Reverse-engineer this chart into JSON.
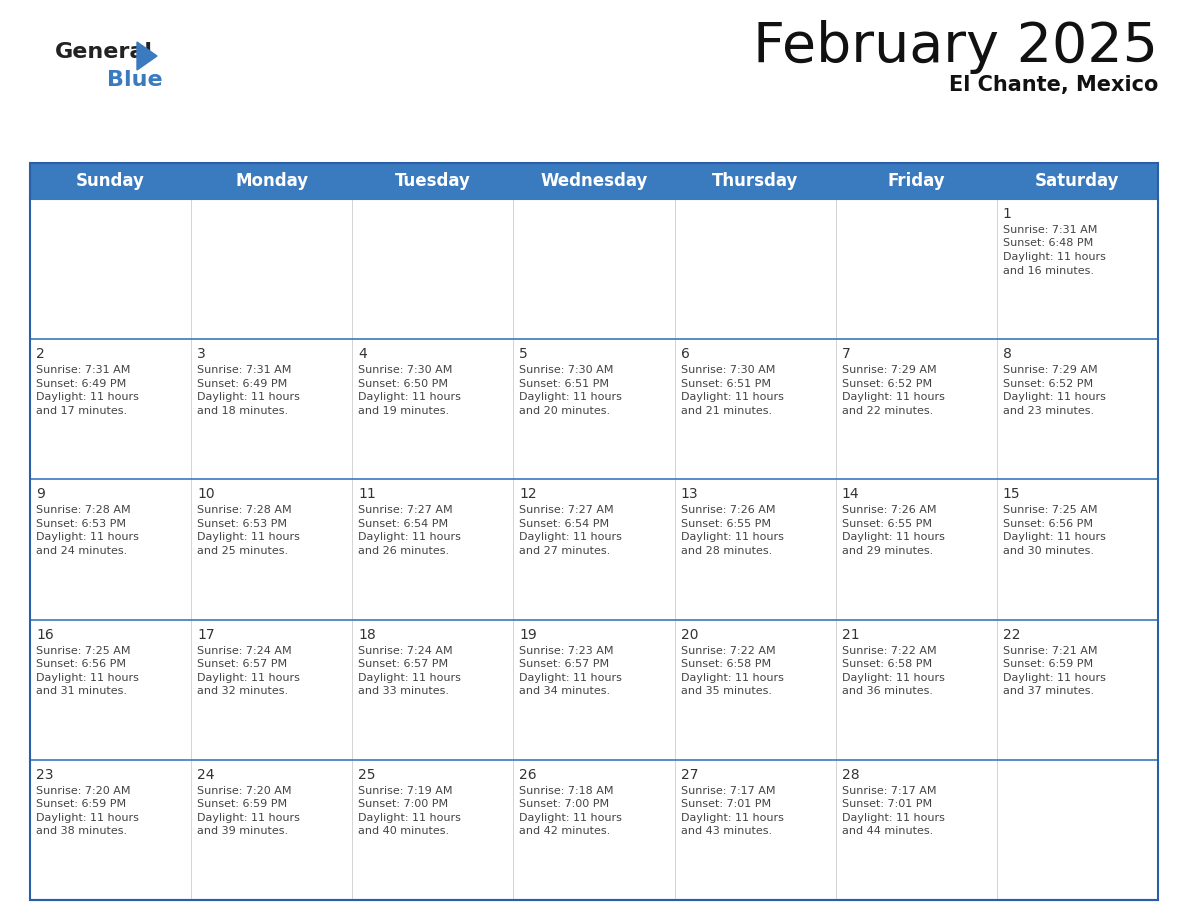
{
  "title": "February 2025",
  "subtitle": "El Chante, Mexico",
  "header_color": "#3a7abf",
  "header_text_color": "#ffffff",
  "cell_bg_color": "#ffffff",
  "cell_alt_bg": "#f0f0f0",
  "border_color": "#2a5fa8",
  "row_line_color": "#3a7abf",
  "day_names": [
    "Sunday",
    "Monday",
    "Tuesday",
    "Wednesday",
    "Thursday",
    "Friday",
    "Saturday"
  ],
  "title_fontsize": 40,
  "subtitle_fontsize": 15,
  "day_header_fontsize": 12,
  "day_num_fontsize": 10,
  "cell_text_fontsize": 8,
  "calendar": [
    [
      {
        "day": null,
        "lines": []
      },
      {
        "day": null,
        "lines": []
      },
      {
        "day": null,
        "lines": []
      },
      {
        "day": null,
        "lines": []
      },
      {
        "day": null,
        "lines": []
      },
      {
        "day": null,
        "lines": []
      },
      {
        "day": 1,
        "lines": [
          "Sunrise: 7:31 AM",
          "Sunset: 6:48 PM",
          "Daylight: 11 hours",
          "and 16 minutes."
        ]
      }
    ],
    [
      {
        "day": 2,
        "lines": [
          "Sunrise: 7:31 AM",
          "Sunset: 6:49 PM",
          "Daylight: 11 hours",
          "and 17 minutes."
        ]
      },
      {
        "day": 3,
        "lines": [
          "Sunrise: 7:31 AM",
          "Sunset: 6:49 PM",
          "Daylight: 11 hours",
          "and 18 minutes."
        ]
      },
      {
        "day": 4,
        "lines": [
          "Sunrise: 7:30 AM",
          "Sunset: 6:50 PM",
          "Daylight: 11 hours",
          "and 19 minutes."
        ]
      },
      {
        "day": 5,
        "lines": [
          "Sunrise: 7:30 AM",
          "Sunset: 6:51 PM",
          "Daylight: 11 hours",
          "and 20 minutes."
        ]
      },
      {
        "day": 6,
        "lines": [
          "Sunrise: 7:30 AM",
          "Sunset: 6:51 PM",
          "Daylight: 11 hours",
          "and 21 minutes."
        ]
      },
      {
        "day": 7,
        "lines": [
          "Sunrise: 7:29 AM",
          "Sunset: 6:52 PM",
          "Daylight: 11 hours",
          "and 22 minutes."
        ]
      },
      {
        "day": 8,
        "lines": [
          "Sunrise: 7:29 AM",
          "Sunset: 6:52 PM",
          "Daylight: 11 hours",
          "and 23 minutes."
        ]
      }
    ],
    [
      {
        "day": 9,
        "lines": [
          "Sunrise: 7:28 AM",
          "Sunset: 6:53 PM",
          "Daylight: 11 hours",
          "and 24 minutes."
        ]
      },
      {
        "day": 10,
        "lines": [
          "Sunrise: 7:28 AM",
          "Sunset: 6:53 PM",
          "Daylight: 11 hours",
          "and 25 minutes."
        ]
      },
      {
        "day": 11,
        "lines": [
          "Sunrise: 7:27 AM",
          "Sunset: 6:54 PM",
          "Daylight: 11 hours",
          "and 26 minutes."
        ]
      },
      {
        "day": 12,
        "lines": [
          "Sunrise: 7:27 AM",
          "Sunset: 6:54 PM",
          "Daylight: 11 hours",
          "and 27 minutes."
        ]
      },
      {
        "day": 13,
        "lines": [
          "Sunrise: 7:26 AM",
          "Sunset: 6:55 PM",
          "Daylight: 11 hours",
          "and 28 minutes."
        ]
      },
      {
        "day": 14,
        "lines": [
          "Sunrise: 7:26 AM",
          "Sunset: 6:55 PM",
          "Daylight: 11 hours",
          "and 29 minutes."
        ]
      },
      {
        "day": 15,
        "lines": [
          "Sunrise: 7:25 AM",
          "Sunset: 6:56 PM",
          "Daylight: 11 hours",
          "and 30 minutes."
        ]
      }
    ],
    [
      {
        "day": 16,
        "lines": [
          "Sunrise: 7:25 AM",
          "Sunset: 6:56 PM",
          "Daylight: 11 hours",
          "and 31 minutes."
        ]
      },
      {
        "day": 17,
        "lines": [
          "Sunrise: 7:24 AM",
          "Sunset: 6:57 PM",
          "Daylight: 11 hours",
          "and 32 minutes."
        ]
      },
      {
        "day": 18,
        "lines": [
          "Sunrise: 7:24 AM",
          "Sunset: 6:57 PM",
          "Daylight: 11 hours",
          "and 33 minutes."
        ]
      },
      {
        "day": 19,
        "lines": [
          "Sunrise: 7:23 AM",
          "Sunset: 6:57 PM",
          "Daylight: 11 hours",
          "and 34 minutes."
        ]
      },
      {
        "day": 20,
        "lines": [
          "Sunrise: 7:22 AM",
          "Sunset: 6:58 PM",
          "Daylight: 11 hours",
          "and 35 minutes."
        ]
      },
      {
        "day": 21,
        "lines": [
          "Sunrise: 7:22 AM",
          "Sunset: 6:58 PM",
          "Daylight: 11 hours",
          "and 36 minutes."
        ]
      },
      {
        "day": 22,
        "lines": [
          "Sunrise: 7:21 AM",
          "Sunset: 6:59 PM",
          "Daylight: 11 hours",
          "and 37 minutes."
        ]
      }
    ],
    [
      {
        "day": 23,
        "lines": [
          "Sunrise: 7:20 AM",
          "Sunset: 6:59 PM",
          "Daylight: 11 hours",
          "and 38 minutes."
        ]
      },
      {
        "day": 24,
        "lines": [
          "Sunrise: 7:20 AM",
          "Sunset: 6:59 PM",
          "Daylight: 11 hours",
          "and 39 minutes."
        ]
      },
      {
        "day": 25,
        "lines": [
          "Sunrise: 7:19 AM",
          "Sunset: 7:00 PM",
          "Daylight: 11 hours",
          "and 40 minutes."
        ]
      },
      {
        "day": 26,
        "lines": [
          "Sunrise: 7:18 AM",
          "Sunset: 7:00 PM",
          "Daylight: 11 hours",
          "and 42 minutes."
        ]
      },
      {
        "day": 27,
        "lines": [
          "Sunrise: 7:17 AM",
          "Sunset: 7:01 PM",
          "Daylight: 11 hours",
          "and 43 minutes."
        ]
      },
      {
        "day": 28,
        "lines": [
          "Sunrise: 7:17 AM",
          "Sunset: 7:01 PM",
          "Daylight: 11 hours",
          "and 44 minutes."
        ]
      },
      {
        "day": null,
        "lines": []
      }
    ]
  ]
}
